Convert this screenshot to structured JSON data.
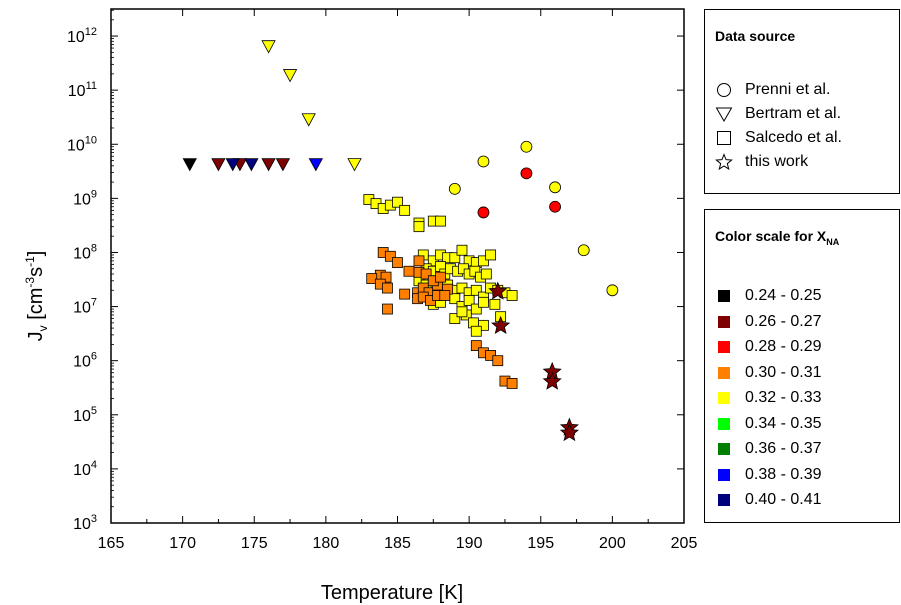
{
  "chart_data": {
    "type": "scatter",
    "title": "",
    "xlabel": "Temperature [K]",
    "ylabel": "J_v [cm^-3 s^-1]",
    "xlim": [
      165,
      205
    ],
    "ylim_log10": [
      3,
      12.5
    ],
    "y_scale": "log",
    "x_ticks": [
      "165",
      "170",
      "175",
      "180",
      "185",
      "190",
      "195",
      "200",
      "205"
    ],
    "y_tick_exponents": [
      "3",
      "4",
      "5",
      "6",
      "7",
      "8",
      "9",
      "10",
      "11",
      "12"
    ],
    "y_tick_base": "10",
    "grid": false,
    "legends": {
      "source_title": "Data source",
      "sources": [
        {
          "label": "Prenni et al.",
          "marker": "circle"
        },
        {
          "label": "Bertram et al.",
          "marker": "triangle-down"
        },
        {
          "label": "Salcedo et al.",
          "marker": "square"
        },
        {
          "label": "this work",
          "marker": "star"
        }
      ],
      "color_title": "Color scale for X",
      "color_title_sub": "NA",
      "color_bins": [
        {
          "label": "0.24 - 0.25",
          "color": "#000000"
        },
        {
          "label": "0.26 - 0.27",
          "color": "#7f0000"
        },
        {
          "label": "0.28 - 0.29",
          "color": "#ff0000"
        },
        {
          "label": "0.30 - 0.31",
          "color": "#ff7f00"
        },
        {
          "label": "0.32 - 0.33",
          "color": "#ffff00"
        },
        {
          "label": "0.34 - 0.35",
          "color": "#00ff00"
        },
        {
          "label": "0.36 - 0.37",
          "color": "#007f00"
        },
        {
          "label": "0.38 - 0.39",
          "color": "#0000ff"
        },
        {
          "label": "0.40 - 0.41",
          "color": "#00007f"
        }
      ]
    },
    "series": [
      {
        "source": "Prenni et al.",
        "bin": "0.32 - 0.33",
        "marker": "circle",
        "x": [
          189,
          191,
          194,
          196,
          198,
          200
        ],
        "y": [
          1500000000.0,
          4800000000.0,
          9000000000.0,
          1600000000.0,
          110000000.0,
          20000000.0
        ]
      },
      {
        "source": "Prenni et al.",
        "bin": "0.28 - 0.29",
        "marker": "circle",
        "x": [
          191,
          194,
          196
        ],
        "y": [
          550000000.0,
          2900000000.0,
          700000000.0
        ]
      },
      {
        "source": "Bertram et al.",
        "bin": "0.24 - 0.25",
        "marker": "triangle-down",
        "x": [
          170.5
        ],
        "y": [
          4300000000.0
        ]
      },
      {
        "source": "Bertram et al.",
        "bin": "0.26 - 0.27",
        "marker": "triangle-down",
        "x": [
          172.5,
          174,
          176,
          177
        ],
        "y": [
          4300000000.0,
          4300000000.0,
          4300000000.0,
          4300000000.0
        ]
      },
      {
        "source": "Bertram et al.",
        "bin": "0.40 - 0.41",
        "marker": "triangle-down",
        "x": [
          173.5,
          174.8
        ],
        "y": [
          4300000000.0,
          4300000000.0
        ]
      },
      {
        "source": "Bertram et al.",
        "bin": "0.38 - 0.39",
        "marker": "triangle-down",
        "x": [
          179.3
        ],
        "y": [
          4300000000.0
        ]
      },
      {
        "source": "Bertram et al.",
        "bin": "0.32 - 0.33",
        "marker": "triangle-down",
        "x": [
          176,
          177.5,
          178.8,
          182
        ],
        "y": [
          650000000000.0,
          190000000000.0,
          29000000000.0,
          4300000000.0
        ]
      },
      {
        "source": "Salcedo et al.",
        "bin": "0.32 - 0.33",
        "marker": "square",
        "x": [
          183,
          183.5,
          184,
          184.5,
          185,
          185.5,
          186.5,
          186.5,
          187.5,
          188,
          186.8,
          187.5,
          188,
          188.5,
          189,
          189.5,
          190,
          190.5,
          191,
          191.5,
          187,
          187.5,
          188,
          188.3,
          188.7,
          189.2,
          189.6,
          190,
          190.4,
          190.8,
          191.2,
          186.5,
          187,
          187.5,
          188,
          188.5,
          189,
          189.5,
          190,
          190.5,
          191,
          191.5,
          192,
          192.5,
          193,
          187.5,
          188,
          189,
          189.5,
          190,
          190.5,
          191,
          191.8,
          192.2,
          189,
          189.8,
          190.3,
          191,
          190.5,
          189.5
        ],
        "y": [
          950000000.0,
          800000000.0,
          650000000.0,
          750000000.0,
          850000000.0,
          600000000.0,
          350000000.0,
          300000000.0,
          380000000.0,
          380000000.0,
          90000000.0,
          70000000.0,
          90000000.0,
          80000000.0,
          80000000.0,
          110000000.0,
          70000000.0,
          65000000.0,
          70000000.0,
          90000000.0,
          50000000.0,
          45000000.0,
          55000000.0,
          40000000.0,
          50000000.0,
          45000000.0,
          50000000.0,
          40000000.0,
          45000000.0,
          35000000.0,
          40000000.0,
          30000000.0,
          25000000.0,
          30000000.0,
          20000000.0,
          25000000.0,
          20000000.0,
          22000000.0,
          18000000.0,
          20000000.0,
          15000000.0,
          22000000.0,
          20000000.0,
          18000000.0,
          16000000.0,
          11000000.0,
          12000000.0,
          14000000.0,
          10000000.0,
          13000000.0,
          9000000.0,
          12000000.0,
          11000000.0,
          6500000.0,
          6000000.0,
          7000000.0,
          5000000.0,
          4500000.0,
          3500000.0,
          8000000.0
        ]
      },
      {
        "source": "Salcedo et al.",
        "bin": "0.30 - 0.31",
        "marker": "square",
        "x": [
          184,
          184.5,
          185,
          185.8,
          186.5,
          183.8,
          184.2,
          183.2,
          183.8,
          184.3,
          185.5,
          186.4,
          186.8,
          187.2,
          187.8,
          188.5,
          186.4,
          186.8,
          187.3,
          187.8,
          188.3,
          186.5,
          187,
          187.5,
          188,
          184.3,
          190.5,
          191,
          191.5,
          192,
          192.5,
          193
        ],
        "y": [
          100000000.0,
          85000000.0,
          65000000.0,
          45000000.0,
          70000000.0,
          38000000.0,
          35000000.0,
          33000000.0,
          26000000.0,
          22000000.0,
          17000000.0,
          18000000.0,
          22000000.0,
          18000000.0,
          25000000.0,
          21000000.0,
          14000000.0,
          15000000.0,
          13000000.0,
          16000000.0,
          16000000.0,
          43000000.0,
          40000000.0,
          30000000.0,
          35000000.0,
          9000000.0,
          1900000.0,
          1400000.0,
          1250000.0,
          1000000.0,
          420000.0,
          380000.0
        ]
      },
      {
        "source": "this work",
        "bin": "0.26 - 0.27",
        "marker": "star",
        "x": [
          192,
          192.2,
          195.8,
          195.8,
          197,
          197
        ],
        "y": [
          19000000.0,
          4400000.0,
          620000.0,
          410000.0,
          58000.0,
          46000.0
        ]
      }
    ]
  }
}
